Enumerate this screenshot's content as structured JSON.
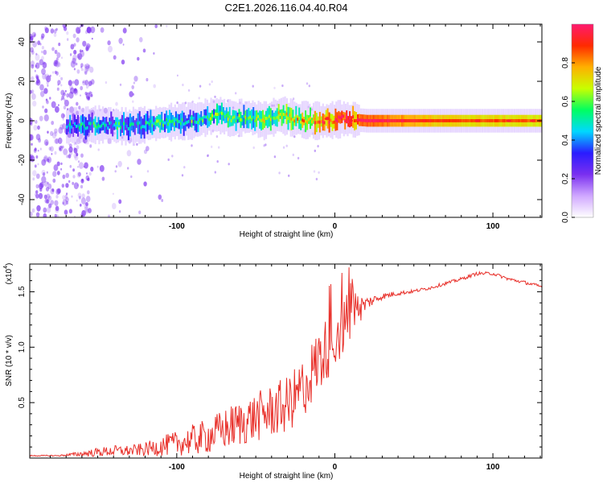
{
  "title": "C2E1.2026.116.04.40.R04",
  "colors": {
    "snr_line": "#e8302a",
    "frame": "#000000",
    "scatter": "#7a2ff0"
  },
  "chart_data": [
    {
      "type": "heatmap",
      "name": "spectrogram",
      "xlabel": "Height of straight line (km)",
      "ylabel": "Frequency (Hz)",
      "xlim": [
        -193,
        131
      ],
      "ylim": [
        -49,
        49
      ],
      "x_ticks": [
        -100,
        0,
        100
      ],
      "x_tick_labels": [
        "-100",
        "0",
        "100"
      ],
      "y_ticks": [
        -40,
        -20,
        0,
        20,
        40
      ],
      "y_tick_labels": [
        "-40",
        "-20",
        "0",
        "20",
        "40"
      ],
      "colorbar": {
        "label": "Normalized spectral amplitude",
        "range": [
          0,
          1
        ],
        "ticks": [
          0.0,
          0.2,
          0.4,
          0.6,
          0.8
        ],
        "tick_labels": [
          "0.0",
          "0.2",
          "0.4",
          "0.6",
          "0.8"
        ],
        "stops": [
          "#ffffff",
          "#d0a8ff",
          "#7a2ff0",
          "#2a1cff",
          "#00d8ff",
          "#00ff60",
          "#c8ff00",
          "#ffb000",
          "#ff2a00",
          "#ff1a70"
        ]
      },
      "ridge": {
        "x": [
          -170,
          -150,
          -130,
          -110,
          -90,
          -75,
          -65,
          -55,
          -45,
          -35,
          -25,
          -15,
          -5,
          5,
          20,
          40,
          60,
          80,
          100,
          131
        ],
        "freq": [
          -3,
          -2,
          -3,
          -1,
          0,
          3,
          1,
          2,
          0,
          3,
          1,
          0,
          0,
          1,
          0,
          0,
          0,
          0,
          0,
          0
        ],
        "amplitude": [
          0.3,
          0.35,
          0.35,
          0.4,
          0.4,
          0.45,
          0.45,
          0.5,
          0.5,
          0.55,
          0.6,
          0.7,
          0.75,
          0.8,
          0.85,
          0.8,
          0.75,
          0.72,
          0.72,
          0.7
        ]
      }
    },
    {
      "type": "line",
      "name": "snr",
      "xlabel": "Height of straight line (km)",
      "ylabel": "SNR (10 * v/v)",
      "scale_label": "(x10",
      "scale_exp": "4",
      "scale_close": ")",
      "xlim": [
        -193,
        131
      ],
      "ylim": [
        0,
        1.75
      ],
      "x_ticks": [
        -100,
        0,
        100
      ],
      "x_tick_labels": [
        "-100",
        "0",
        "100"
      ],
      "y_ticks": [
        0.5,
        1.0,
        1.5
      ],
      "y_tick_labels": [
        "0.5",
        "1.0",
        "1.5"
      ],
      "envelope": {
        "x": [
          -193,
          -175,
          -160,
          -150,
          -140,
          -130,
          -120,
          -110,
          -100,
          -90,
          -80,
          -70,
          -60,
          -50,
          -40,
          -30,
          -20,
          -10,
          0,
          10,
          20,
          30,
          40,
          50,
          60,
          70,
          80,
          90,
          100,
          110,
          120,
          131
        ],
        "base": [
          0.02,
          0.02,
          0.03,
          0.04,
          0.05,
          0.05,
          0.06,
          0.08,
          0.1,
          0.12,
          0.15,
          0.2,
          0.25,
          0.3,
          0.35,
          0.4,
          0.55,
          0.8,
          1.0,
          1.2,
          1.38,
          1.45,
          1.48,
          1.5,
          1.53,
          1.57,
          1.61,
          1.66,
          1.66,
          1.61,
          1.58,
          1.54
        ],
        "spread": [
          0.01,
          0.01,
          0.05,
          0.08,
          0.1,
          0.1,
          0.12,
          0.18,
          0.22,
          0.28,
          0.32,
          0.38,
          0.42,
          0.45,
          0.48,
          0.52,
          0.55,
          0.6,
          0.55,
          0.5,
          0.12,
          0.06,
          0.04,
          0.03,
          0.03,
          0.03,
          0.03,
          0.03,
          0.03,
          0.03,
          0.03,
          0.03
        ]
      }
    }
  ]
}
